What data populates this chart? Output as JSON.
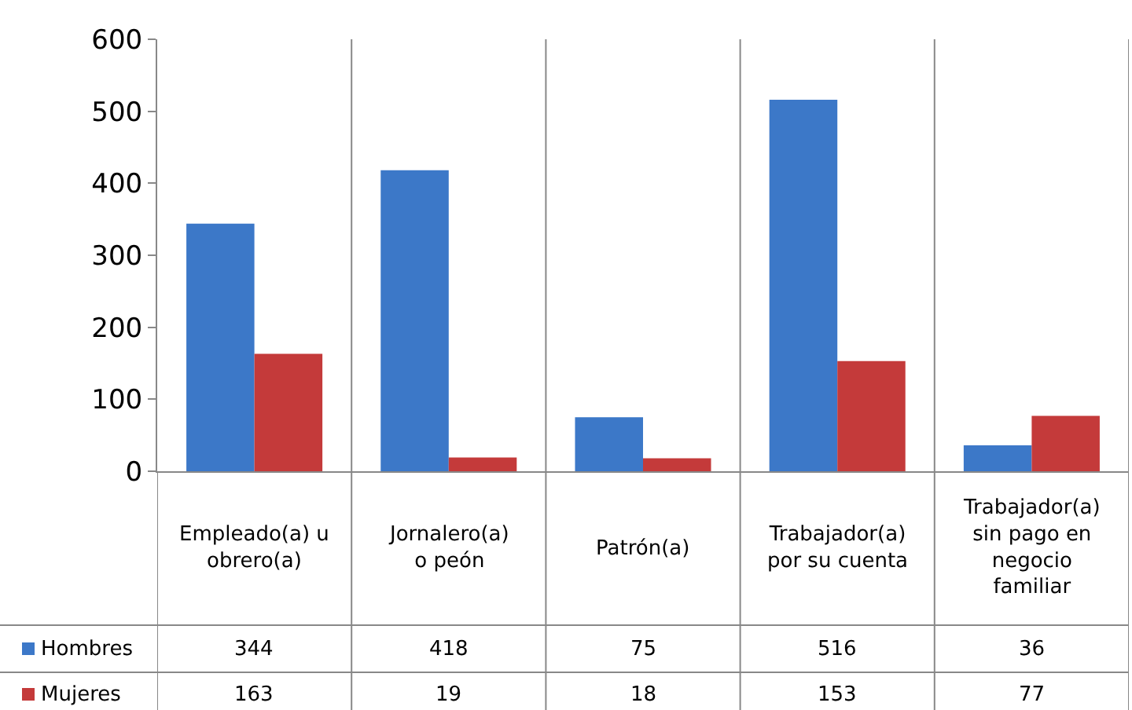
{
  "chart_data": {
    "type": "bar",
    "categories": [
      "Empleado(a) u obrero(a)",
      "Jornalero(a) o peón",
      "Patrón(a)",
      "Trabajador(a) por su cuenta",
      "Trabajador(a) sin pago en negocio familiar"
    ],
    "series": [
      {
        "name": "Hombres",
        "color": "#3c78c8",
        "values": [
          344,
          418,
          75,
          516,
          36
        ]
      },
      {
        "name": "Mujeres",
        "color": "#c43a3a",
        "values": [
          163,
          19,
          18,
          153,
          77
        ]
      }
    ],
    "ylim": [
      0,
      600
    ],
    "yticks": [
      0,
      100,
      200,
      300,
      400,
      500,
      600
    ],
    "grid": false,
    "legend": "bottom left",
    "data_labels": true
  }
}
